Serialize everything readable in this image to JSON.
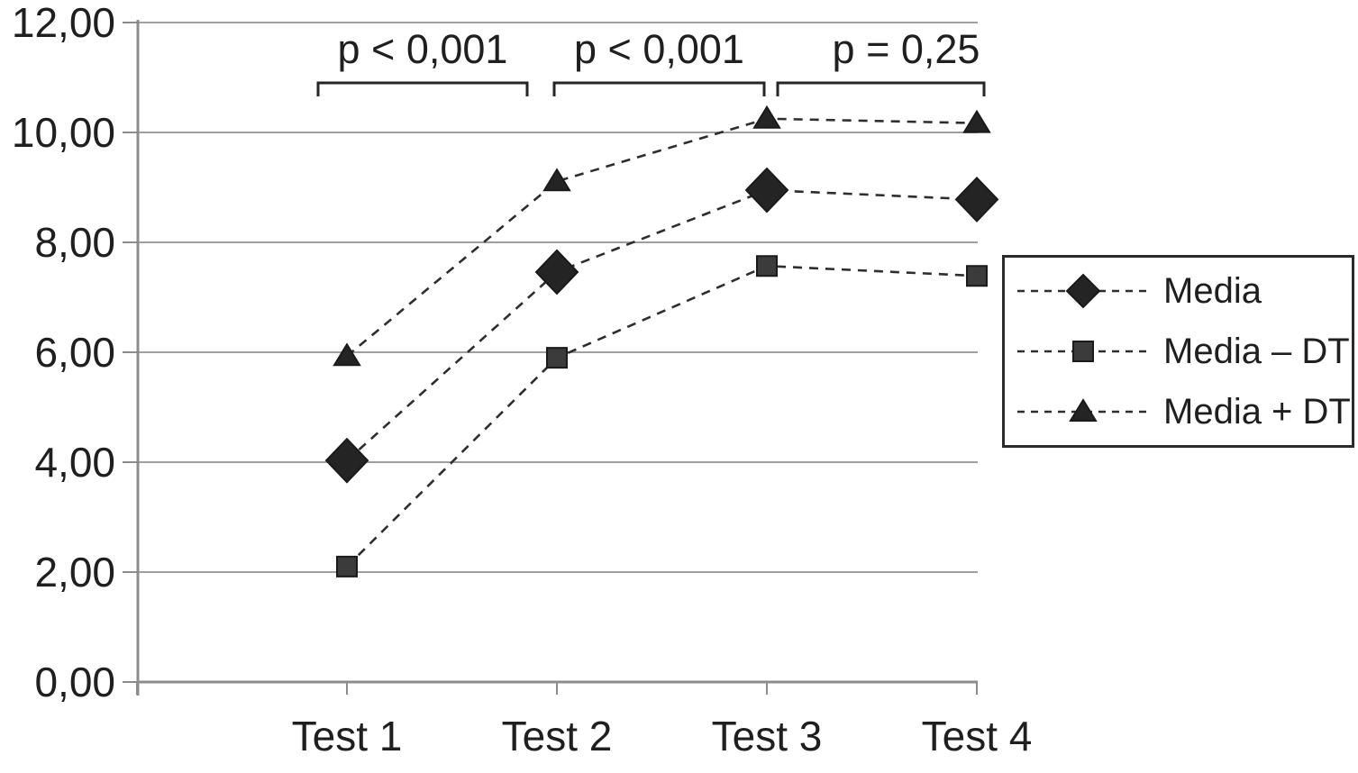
{
  "chart_data": {
    "type": "line",
    "title": "",
    "xlabel": "",
    "ylabel": "",
    "categories": [
      "Test 1",
      "Test 2",
      "Test 3",
      "Test 4"
    ],
    "series": [
      {
        "name": "Media",
        "marker": "diamond",
        "values": [
          4.03,
          7.46,
          8.95,
          8.78
        ]
      },
      {
        "name": "Media – DT",
        "marker": "square",
        "values": [
          2.1,
          5.9,
          7.57,
          7.39
        ]
      },
      {
        "name": "Media + DT",
        "marker": "triangle",
        "values": [
          5.93,
          9.11,
          10.25,
          10.17
        ]
      }
    ],
    "ylim": [
      0,
      12
    ],
    "ytick_step": 2,
    "ytick_labels": [
      "0,00",
      "2,00",
      "4,00",
      "6,00",
      "8,00",
      "10,00",
      "12,00"
    ],
    "decimal_separator": ",",
    "grid": "horizontal",
    "line_style": "dashed",
    "legend_position": "right",
    "annotations": [
      {
        "label": "p < 0,001",
        "from_index": 0,
        "to_index": 1
      },
      {
        "label": "p < 0,001",
        "from_index": 1,
        "to_index": 2
      },
      {
        "label": "p = 0,25",
        "from_index": 2,
        "to_index": 3
      }
    ],
    "colors": {
      "series": "#2e2e2e",
      "marker_fill": "#242424",
      "square_fill": "#3b3b3b",
      "grid": "#9f9f9f",
      "axis": "#8c8c8c",
      "text": "#1f1f1f",
      "background": "#ffffff"
    }
  }
}
